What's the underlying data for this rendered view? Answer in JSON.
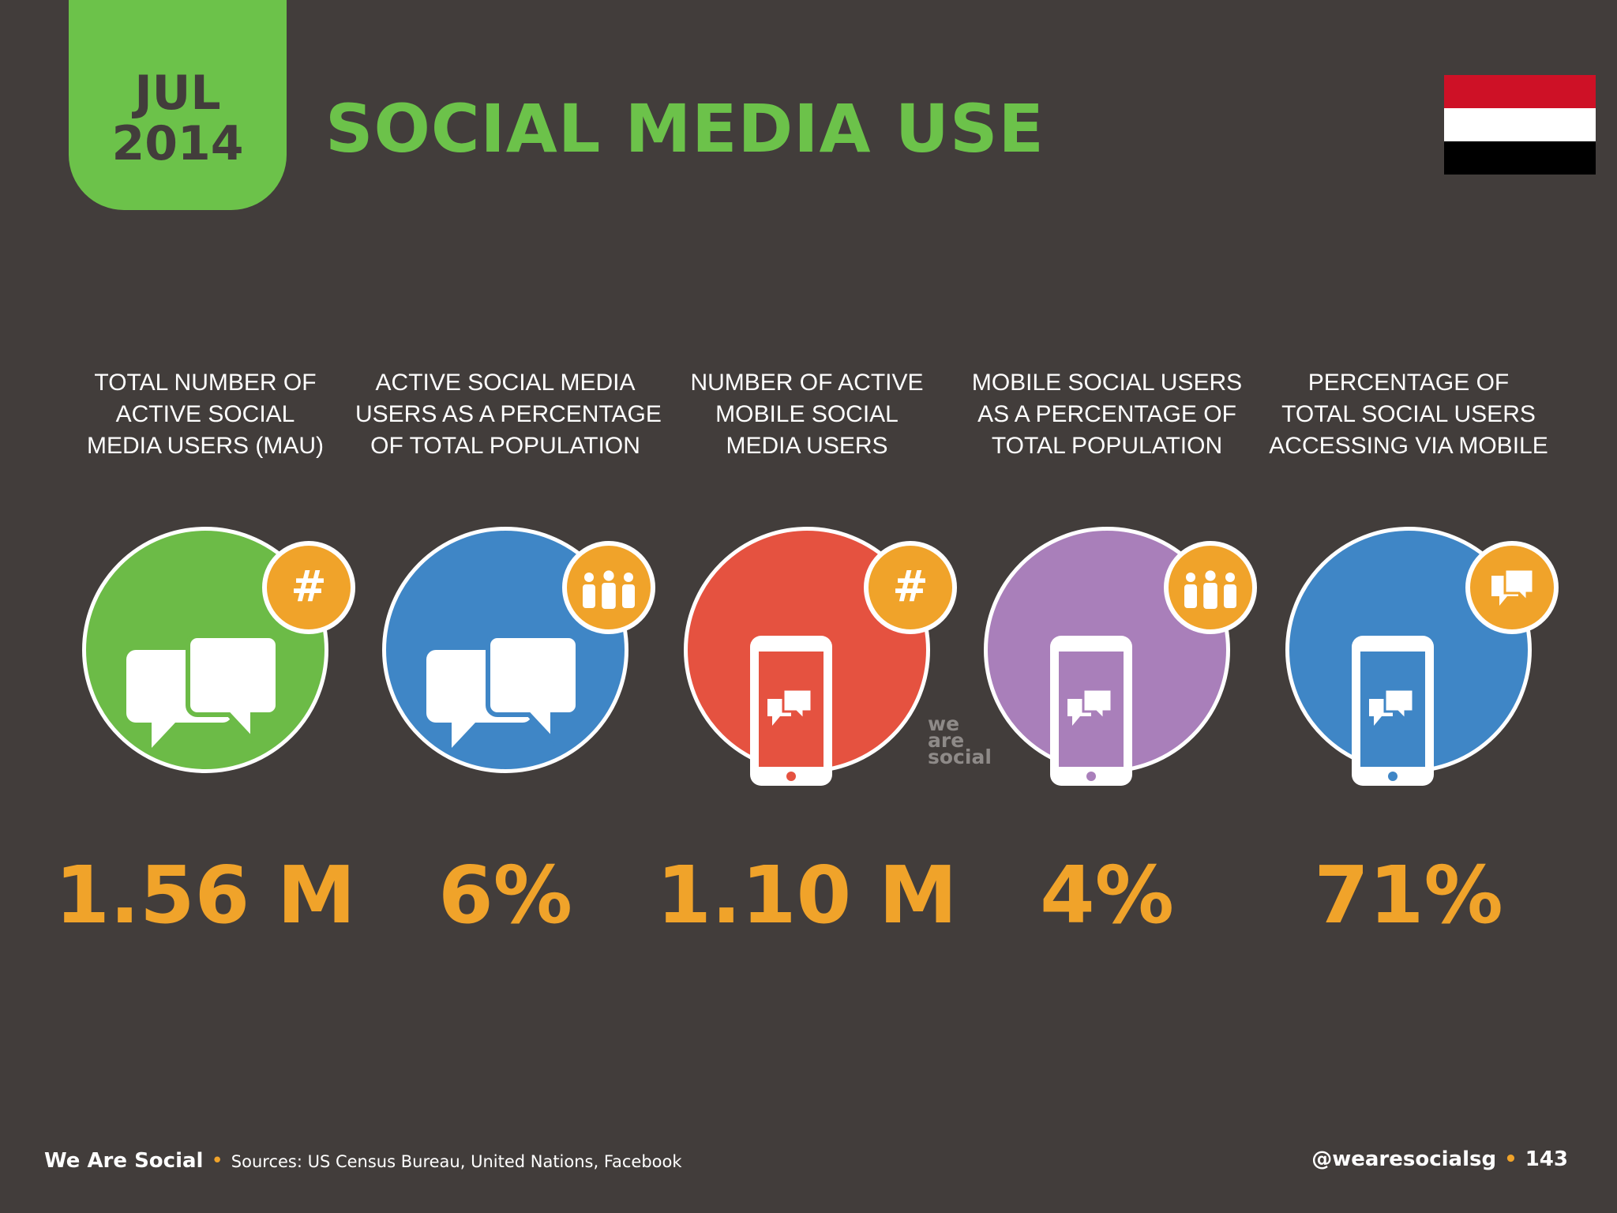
{
  "header": {
    "date_month": "JUL",
    "date_year": "2014",
    "title": "SOCIAL MEDIA USE",
    "flag_colors": [
      "#ce1126",
      "#ffffff",
      "#000000"
    ]
  },
  "metrics": [
    {
      "label_lines": [
        "TOTAL NUMBER OF",
        "ACTIVE SOCIAL",
        "MEDIA USERS (MAU)"
      ],
      "value": "1.56 M",
      "circle_color": "#6cbb47",
      "icon": "chat-bubbles-icon",
      "badge_icon": "hashtag-icon"
    },
    {
      "label_lines": [
        "ACTIVE SOCIAL MEDIA",
        "USERS AS A PERCENTAGE",
        "OF TOTAL POPULATION"
      ],
      "value": "6%",
      "circle_color": "#3f86c6",
      "icon": "chat-bubbles-icon",
      "badge_icon": "people-icon"
    },
    {
      "label_lines": [
        "NUMBER OF ACTIVE",
        "MOBILE SOCIAL",
        "MEDIA USERS"
      ],
      "value": "1.10 M",
      "circle_color": "#e55240",
      "icon": "mobile-chat-icon",
      "badge_icon": "hashtag-icon"
    },
    {
      "label_lines": [
        "MOBILE SOCIAL USERS",
        "AS A PERCENTAGE OF",
        "TOTAL POPULATION"
      ],
      "value": "4%",
      "circle_color": "#a97fba",
      "icon": "mobile-chat-icon",
      "badge_icon": "people-icon"
    },
    {
      "label_lines": [
        "PERCENTAGE OF",
        "TOTAL SOCIAL USERS",
        "ACCESSING VIA MOBILE"
      ],
      "value": "71%",
      "circle_color": "#3f86c6",
      "icon": "mobile-chat-icon",
      "badge_icon": "chat-bubbles-icon"
    }
  ],
  "watermark": [
    "we",
    "are",
    "social"
  ],
  "footer": {
    "brand": "We Are Social",
    "sources": "Sources: US Census Bureau, United Nations, Facebook",
    "handle": "@wearesocialsg",
    "page_number": "143"
  }
}
